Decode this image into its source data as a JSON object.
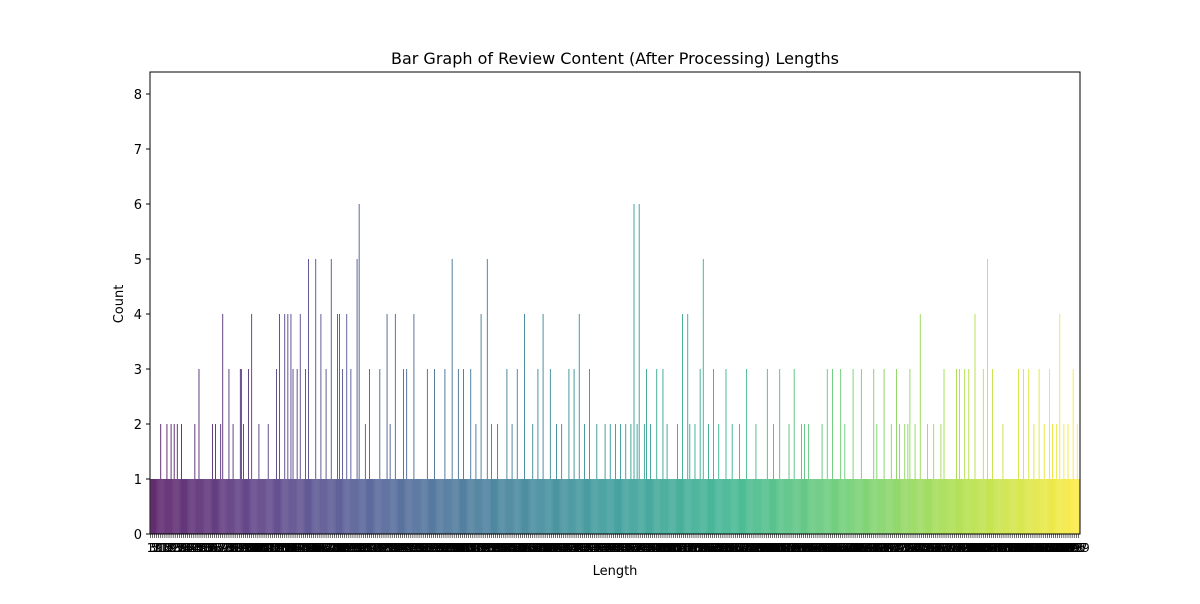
{
  "chart_data": {
    "type": "bar",
    "title": "Bar Graph of Review Content (After Processing) Lengths",
    "xlabel": "Length",
    "ylabel": "Count",
    "ylim": [
      0,
      8.4
    ],
    "yticks": [
      0,
      1,
      2,
      3,
      4,
      5,
      6,
      7,
      8
    ],
    "colormap": "viridis",
    "grid": false,
    "legend": "none",
    "n_categories": 900,
    "categories_start": 1,
    "tick_label_color": "#000000",
    "peaks": [
      {
        "index": 10,
        "count": 2
      },
      {
        "index": 16,
        "count": 2
      },
      {
        "index": 20,
        "count": 2
      },
      {
        "index": 23,
        "count": 2
      },
      {
        "index": 26,
        "count": 2
      },
      {
        "index": 30,
        "count": 2
      },
      {
        "index": 43,
        "count": 2
      },
      {
        "index": 47,
        "count": 3
      },
      {
        "index": 60,
        "count": 2
      },
      {
        "index": 63,
        "count": 2
      },
      {
        "index": 68,
        "count": 2
      },
      {
        "index": 70,
        "count": 4
      },
      {
        "index": 76,
        "count": 3
      },
      {
        "index": 80,
        "count": 2
      },
      {
        "index": 87,
        "count": 3
      },
      {
        "index": 88,
        "count": 3
      },
      {
        "index": 90,
        "count": 2
      },
      {
        "index": 95,
        "count": 3
      },
      {
        "index": 98,
        "count": 4
      },
      {
        "index": 105,
        "count": 2
      },
      {
        "index": 114,
        "count": 2
      },
      {
        "index": 122,
        "count": 3
      },
      {
        "index": 125,
        "count": 4
      },
      {
        "index": 130,
        "count": 4
      },
      {
        "index": 133,
        "count": 4
      },
      {
        "index": 136,
        "count": 4
      },
      {
        "index": 138,
        "count": 3
      },
      {
        "index": 142,
        "count": 3
      },
      {
        "index": 145,
        "count": 4
      },
      {
        "index": 150,
        "count": 3
      },
      {
        "index": 153,
        "count": 5
      },
      {
        "index": 160,
        "count": 5
      },
      {
        "index": 165,
        "count": 4
      },
      {
        "index": 170,
        "count": 3
      },
      {
        "index": 175,
        "count": 5
      },
      {
        "index": 181,
        "count": 4
      },
      {
        "index": 183,
        "count": 4
      },
      {
        "index": 186,
        "count": 3
      },
      {
        "index": 190,
        "count": 4
      },
      {
        "index": 194,
        "count": 3
      },
      {
        "index": 200,
        "count": 5
      },
      {
        "index": 202,
        "count": 6
      },
      {
        "index": 208,
        "count": 2
      },
      {
        "index": 212,
        "count": 3
      },
      {
        "index": 222,
        "count": 3
      },
      {
        "index": 229,
        "count": 4
      },
      {
        "index": 232,
        "count": 2
      },
      {
        "index": 237,
        "count": 4
      },
      {
        "index": 245,
        "count": 3
      },
      {
        "index": 248,
        "count": 3
      },
      {
        "index": 255,
        "count": 4
      },
      {
        "index": 268,
        "count": 3
      },
      {
        "index": 275,
        "count": 3
      },
      {
        "index": 285,
        "count": 3
      },
      {
        "index": 292,
        "count": 5
      },
      {
        "index": 298,
        "count": 3
      },
      {
        "index": 303,
        "count": 3
      },
      {
        "index": 310,
        "count": 3
      },
      {
        "index": 315,
        "count": 2
      },
      {
        "index": 320,
        "count": 4
      },
      {
        "index": 326,
        "count": 5
      },
      {
        "index": 330,
        "count": 2
      },
      {
        "index": 336,
        "count": 2
      },
      {
        "index": 345,
        "count": 3
      },
      {
        "index": 350,
        "count": 2
      },
      {
        "index": 355,
        "count": 3
      },
      {
        "index": 362,
        "count": 4
      },
      {
        "index": 370,
        "count": 2
      },
      {
        "index": 375,
        "count": 3
      },
      {
        "index": 380,
        "count": 4
      },
      {
        "index": 387,
        "count": 3
      },
      {
        "index": 393,
        "count": 2
      },
      {
        "index": 398,
        "count": 2
      },
      {
        "index": 405,
        "count": 3
      },
      {
        "index": 410,
        "count": 3
      },
      {
        "index": 415,
        "count": 4
      },
      {
        "index": 420,
        "count": 2
      },
      {
        "index": 425,
        "count": 3
      },
      {
        "index": 432,
        "count": 2
      },
      {
        "index": 440,
        "count": 2
      },
      {
        "index": 445,
        "count": 2
      },
      {
        "index": 450,
        "count": 2
      },
      {
        "index": 455,
        "count": 2
      },
      {
        "index": 460,
        "count": 2
      },
      {
        "index": 465,
        "count": 2
      },
      {
        "index": 468,
        "count": 6
      },
      {
        "index": 471,
        "count": 2
      },
      {
        "index": 473,
        "count": 6
      },
      {
        "index": 478,
        "count": 2
      },
      {
        "index": 480,
        "count": 3
      },
      {
        "index": 484,
        "count": 2
      },
      {
        "index": 490,
        "count": 3
      },
      {
        "index": 496,
        "count": 3
      },
      {
        "index": 500,
        "count": 2
      },
      {
        "index": 510,
        "count": 2
      },
      {
        "index": 515,
        "count": 4
      },
      {
        "index": 520,
        "count": 4
      },
      {
        "index": 522,
        "count": 2
      },
      {
        "index": 527,
        "count": 2
      },
      {
        "index": 532,
        "count": 3
      },
      {
        "index": 535,
        "count": 5
      },
      {
        "index": 540,
        "count": 2
      },
      {
        "index": 545,
        "count": 3
      },
      {
        "index": 550,
        "count": 2
      },
      {
        "index": 557,
        "count": 3
      },
      {
        "index": 563,
        "count": 2
      },
      {
        "index": 570,
        "count": 2
      },
      {
        "index": 577,
        "count": 3
      },
      {
        "index": 586,
        "count": 2
      },
      {
        "index": 597,
        "count": 3
      },
      {
        "index": 603,
        "count": 2
      },
      {
        "index": 609,
        "count": 3
      },
      {
        "index": 618,
        "count": 2
      },
      {
        "index": 623,
        "count": 3
      },
      {
        "index": 630,
        "count": 2
      },
      {
        "index": 633,
        "count": 2
      },
      {
        "index": 637,
        "count": 2
      },
      {
        "index": 650,
        "count": 2
      },
      {
        "index": 655,
        "count": 3
      },
      {
        "index": 660,
        "count": 3
      },
      {
        "index": 668,
        "count": 3
      },
      {
        "index": 672,
        "count": 2
      },
      {
        "index": 680,
        "count": 3
      },
      {
        "index": 688,
        "count": 3
      },
      {
        "index": 700,
        "count": 3
      },
      {
        "index": 703,
        "count": 2
      },
      {
        "index": 710,
        "count": 3
      },
      {
        "index": 717,
        "count": 2
      },
      {
        "index": 722,
        "count": 3
      },
      {
        "index": 725,
        "count": 2
      },
      {
        "index": 730,
        "count": 2
      },
      {
        "index": 733,
        "count": 2
      },
      {
        "index": 735,
        "count": 3
      },
      {
        "index": 740,
        "count": 2
      },
      {
        "index": 745,
        "count": 4
      },
      {
        "index": 752,
        "count": 2
      },
      {
        "index": 758,
        "count": 2
      },
      {
        "index": 765,
        "count": 2
      },
      {
        "index": 768,
        "count": 3
      },
      {
        "index": 780,
        "count": 3
      },
      {
        "index": 783,
        "count": 3
      },
      {
        "index": 788,
        "count": 3
      },
      {
        "index": 792,
        "count": 3
      },
      {
        "index": 798,
        "count": 4
      },
      {
        "index": 806,
        "count": 3
      },
      {
        "index": 810,
        "count": 5
      },
      {
        "index": 815,
        "count": 3
      },
      {
        "index": 825,
        "count": 2
      },
      {
        "index": 840,
        "count": 3
      },
      {
        "index": 845,
        "count": 3
      },
      {
        "index": 850,
        "count": 3
      },
      {
        "index": 855,
        "count": 2
      },
      {
        "index": 860,
        "count": 3
      },
      {
        "index": 865,
        "count": 2
      },
      {
        "index": 870,
        "count": 3
      },
      {
        "index": 873,
        "count": 2
      },
      {
        "index": 877,
        "count": 2
      },
      {
        "index": 880,
        "count": 4
      },
      {
        "index": 884,
        "count": 2
      },
      {
        "index": 888,
        "count": 2
      },
      {
        "index": 893,
        "count": 3
      },
      {
        "index": 897,
        "count": 2
      }
    ],
    "base_count": 1,
    "description_note_on_labels": "x tick labels overlap densely into an unreadable black band"
  }
}
